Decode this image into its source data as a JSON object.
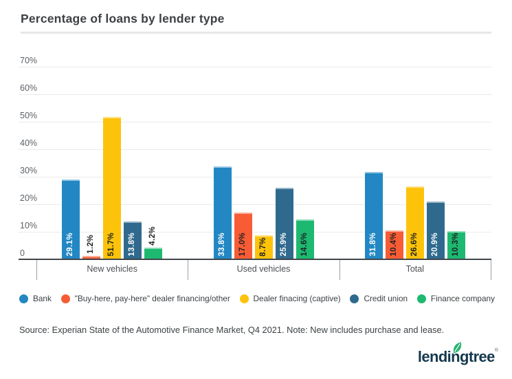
{
  "header": {
    "title": "Percentage of loans by lender type"
  },
  "chart_data": {
    "type": "bar",
    "title": "Percentage of loans by lender type",
    "categories": [
      "New vehicles",
      "Used vehicles",
      "Total"
    ],
    "series": [
      {
        "name": "Bank",
        "color": "#2287c3",
        "label_color": "#ffffff",
        "values": [
          29.1,
          33.8,
          31.8
        ]
      },
      {
        "name": "\"Buy-here, pay-here\" dealer financing/other",
        "color": "#f85c35",
        "label_color": "#1d2124",
        "values": [
          1.2,
          17.0,
          10.4
        ]
      },
      {
        "name": "Dealer finacing (captive)",
        "color": "#fdc30a",
        "label_color": "#1d2124",
        "values": [
          51.7,
          8.7,
          26.6
        ]
      },
      {
        "name": "Credit union",
        "color": "#2f6a8e",
        "label_color": "#ffffff",
        "values": [
          13.8,
          25.9,
          20.9
        ]
      },
      {
        "name": "Finance company",
        "color": "#1db970",
        "label_color": "#1d2124",
        "values": [
          4.2,
          14.6,
          10.3
        ]
      }
    ],
    "y_ticks": [
      {
        "value": 0,
        "label": "0"
      },
      {
        "value": 10,
        "label": "10%"
      },
      {
        "value": 20,
        "label": "20%"
      },
      {
        "value": 30,
        "label": "30%"
      },
      {
        "value": 40,
        "label": "40%"
      },
      {
        "value": 50,
        "label": "50%"
      },
      {
        "value": 60,
        "label": "60%"
      },
      {
        "value": 70,
        "label": "70%"
      }
    ],
    "ylim": [
      0,
      70
    ],
    "grid": true,
    "legend_position": "bottom",
    "value_label_suffix": "%"
  },
  "footer": {
    "source": "Source: Experian State of the Automotive Finance Market, Q4 2021. Note: New includes purchase and lease.",
    "logo_text": "lendingtree",
    "logo_mark": "®"
  }
}
